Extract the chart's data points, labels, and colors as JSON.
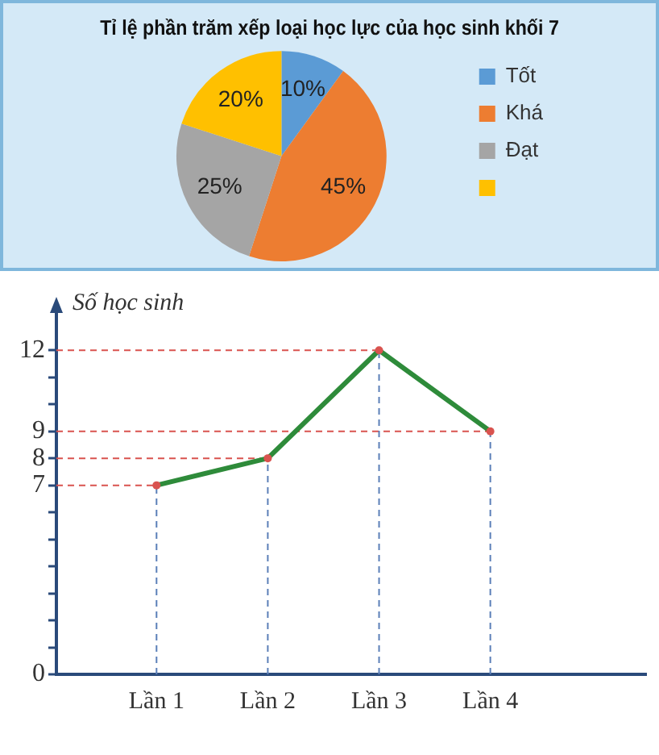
{
  "chart_data": [
    {
      "type": "pie",
      "title": "Tỉ lệ phần trăm xếp loại học lực của học sinh khối 7",
      "categories": [
        "Tốt",
        "Khá",
        "Đạt",
        null
      ],
      "values": [
        10,
        45,
        25,
        20
      ],
      "colors": [
        "#5b9bd5",
        "#ed7d31",
        "#a5a5a5",
        "#ffc000"
      ],
      "value_labels": [
        "10%",
        "45%",
        "25%",
        "20%"
      ],
      "legend": "right"
    },
    {
      "type": "line",
      "ylabel": "Số học sinh",
      "categories": [
        "Lần 1",
        "Lần 2",
        "Lần 3",
        "Lần 4"
      ],
      "series": [
        {
          "color": "#2e8b3a",
          "values": [
            7,
            8,
            12,
            9
          ]
        }
      ],
      "ylim": [
        0,
        13.5
      ],
      "yticks": [
        0,
        {
          "value": 1,
          "label": null
        },
        {
          "value": 2,
          "label": null
        },
        {
          "value": 3,
          "label": null
        },
        {
          "value": 4,
          "label": null
        },
        {
          "value": 5,
          "label": null
        },
        {
          "value": 6,
          "label": null
        },
        7,
        8,
        9,
        {
          "value": 10,
          "label": null
        },
        {
          "value": 11,
          "label": null
        },
        12
      ],
      "ref_lines": [
        {
          "axis": "y",
          "value": 12,
          "color": "#d9534f",
          "line_style": "dashed"
        },
        {
          "axis": "y",
          "value": 9,
          "color": "#d9534f",
          "line_style": "dashed"
        },
        {
          "axis": "y",
          "value": 8,
          "color": "#d9534f",
          "line_style": "dashed"
        },
        {
          "axis": "y",
          "value": 7,
          "color": "#d9534f",
          "line_style": "dashed"
        },
        {
          "axis": "x",
          "value": "Lần 1",
          "color": "#5b7fb8",
          "line_style": "dashed"
        },
        {
          "axis": "x",
          "value": "Lần 2",
          "color": "#5b7fb8",
          "line_style": "dashed"
        },
        {
          "axis": "x",
          "value": "Lần 3",
          "color": "#5b7fb8",
          "line_style": "dashed"
        },
        {
          "axis": "x",
          "value": "Lần 4",
          "color": "#5b7fb8",
          "line_style": "dashed"
        }
      ],
      "marker": "circle",
      "line_style": "solid",
      "grid": false,
      "legend": false
    }
  ]
}
